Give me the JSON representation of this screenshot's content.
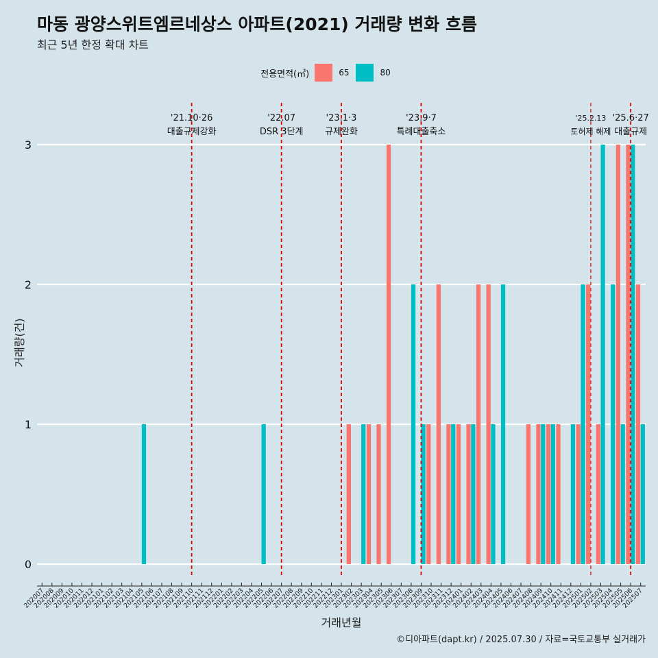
{
  "title": "마동 광양스위트엠르네상스 아파트(2021) 거래량 변화 흐름",
  "subtitle": "최근 5년 한정 확대 차트",
  "caption": "©디아파트(dapt.kr) / 2025.07.30 / 자료=국토교통부 실거래가",
  "legend": {
    "title": "전용면적(㎡)",
    "items": [
      {
        "label": "65",
        "color": "#f8766d"
      },
      {
        "label": "80",
        "color": "#00bfc4"
      }
    ]
  },
  "chart_data": {
    "type": "bar",
    "xlabel": "거래년월",
    "ylabel": "거래량(건)",
    "ylim": [
      0,
      3
    ],
    "yticks": [
      0,
      1,
      2,
      3
    ],
    "grid": true,
    "legend_position": "top",
    "categories": [
      "202007",
      "202008",
      "202009",
      "202010",
      "202011",
      "202012",
      "202101",
      "202102",
      "202103",
      "202104",
      "202105",
      "202106",
      "202107",
      "202108",
      "202109",
      "202110",
      "202111",
      "202112",
      "202201",
      "202202",
      "202203",
      "202204",
      "202205",
      "202206",
      "202207",
      "202208",
      "202209",
      "202210",
      "202211",
      "202212",
      "202301",
      "202302",
      "202303",
      "202304",
      "202305",
      "202306",
      "202307",
      "202308",
      "202309",
      "202310",
      "202311",
      "202312",
      "202401",
      "202402",
      "202403",
      "202404",
      "202405",
      "202406",
      "202407",
      "202408",
      "202409",
      "202410",
      "202411",
      "202412",
      "202501",
      "202502",
      "202503",
      "202504",
      "202505",
      "202506",
      "202507"
    ],
    "series": [
      {
        "name": "65",
        "color": "#f8766d",
        "values": [
          0,
          0,
          0,
          0,
          0,
          0,
          0,
          0,
          0,
          0,
          0,
          0,
          0,
          0,
          0,
          0,
          0,
          0,
          0,
          0,
          0,
          0,
          0,
          0,
          0,
          0,
          0,
          0,
          0,
          0,
          0,
          1,
          0,
          1,
          1,
          3,
          0,
          0,
          0,
          1,
          2,
          1,
          1,
          1,
          2,
          2,
          0,
          0,
          0,
          1,
          1,
          1,
          1,
          0,
          1,
          2,
          1,
          0,
          3,
          3,
          2
        ]
      },
      {
        "name": "80",
        "color": "#00bfc4",
        "values": [
          0,
          0,
          0,
          0,
          0,
          0,
          0,
          0,
          0,
          0,
          1,
          0,
          0,
          0,
          0,
          0,
          0,
          0,
          0,
          0,
          0,
          0,
          1,
          0,
          0,
          0,
          0,
          0,
          0,
          0,
          0,
          0,
          1,
          0,
          0,
          0,
          0,
          2,
          1,
          0,
          0,
          1,
          0,
          1,
          0,
          1,
          2,
          0,
          0,
          0,
          1,
          1,
          0,
          1,
          2,
          0,
          3,
          2,
          1,
          3,
          1
        ]
      }
    ],
    "events": [
      {
        "category": "202110",
        "date": "'21.10·26",
        "label": "대출규제강화"
      },
      {
        "category": "202207",
        "date": "'22.07",
        "label": "DSR 3단계"
      },
      {
        "category": "202301",
        "date": "'23.1·3",
        "label": "규제완화"
      },
      {
        "category": "202309",
        "date": "'23.9·7",
        "label": "특례대출축소"
      },
      {
        "category": "202502",
        "date": "'25.2.13",
        "label": "토허제 해제"
      },
      {
        "category": "202506",
        "date": "'25.6·27",
        "label": "대출규제"
      }
    ],
    "event_line_color": "#e00000"
  }
}
